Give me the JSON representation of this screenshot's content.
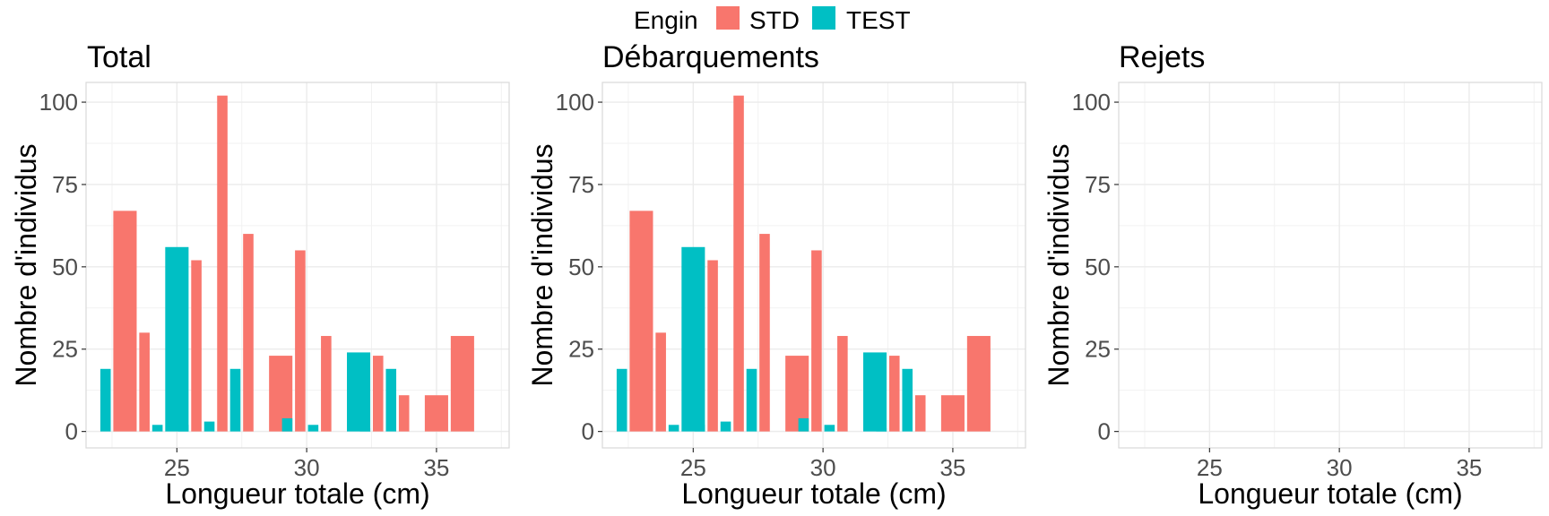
{
  "legend": {
    "title": "Engin",
    "items": [
      {
        "label": "STD",
        "color": "#F8766D"
      },
      {
        "label": "TEST",
        "color": "#00BFC4"
      }
    ]
  },
  "chart_data": [
    {
      "type": "bar",
      "title": "Total",
      "xlabel": "Longueur totale (cm)",
      "ylabel": "Nombre d'individus",
      "xlim": [
        21.5,
        37.8
      ],
      "ylim": [
        -5,
        106
      ],
      "xticks": [
        25,
        30,
        35
      ],
      "yticks": [
        0,
        25,
        50,
        75,
        100
      ],
      "grid": true,
      "series": [
        {
          "name": "STD",
          "color": "#F8766D",
          "points": [
            {
              "x0": 22.55,
              "x1": 23.45,
              "y": 67
            },
            {
              "x0": 23.55,
              "x1": 23.95,
              "y": 30
            },
            {
              "x0": 25.55,
              "x1": 25.95,
              "y": 52
            },
            {
              "x0": 26.55,
              "x1": 26.95,
              "y": 102
            },
            {
              "x0": 27.55,
              "x1": 27.95,
              "y": 60
            },
            {
              "x0": 28.55,
              "x1": 29.45,
              "y": 23
            },
            {
              "x0": 29.55,
              "x1": 29.95,
              "y": 55
            },
            {
              "x0": 30.55,
              "x1": 30.95,
              "y": 29
            },
            {
              "x0": 32.55,
              "x1": 32.95,
              "y": 23
            },
            {
              "x0": 33.55,
              "x1": 33.95,
              "y": 11
            },
            {
              "x0": 34.55,
              "x1": 35.45,
              "y": 11
            },
            {
              "x0": 35.55,
              "x1": 36.45,
              "y": 29
            }
          ]
        },
        {
          "name": "TEST",
          "color": "#00BFC4",
          "points": [
            {
              "x0": 22.05,
              "x1": 22.45,
              "y": 19
            },
            {
              "x0": 24.05,
              "x1": 24.45,
              "y": 2
            },
            {
              "x0": 25.05,
              "x1": 25.45,
              "y": 2
            },
            {
              "x0": 26.05,
              "x1": 26.45,
              "y": 3
            },
            {
              "x0": 27.05,
              "x1": 27.45,
              "y": 19
            },
            {
              "x0": 24.55,
              "x1": 25.45,
              "y": 56
            },
            {
              "x0": 29.05,
              "x1": 29.45,
              "y": 4
            },
            {
              "x0": 30.05,
              "x1": 30.45,
              "y": 2
            },
            {
              "x0": 31.55,
              "x1": 32.45,
              "y": 24
            },
            {
              "x0": 32.05,
              "x1": 32.45,
              "y": 1
            },
            {
              "x0": 33.05,
              "x1": 33.45,
              "y": 19
            }
          ]
        }
      ]
    },
    {
      "type": "bar",
      "title": "Débarquements",
      "xlabel": "Longueur totale (cm)",
      "ylabel": "Nombre d'individus",
      "xlim": [
        21.5,
        37.8
      ],
      "ylim": [
        -5,
        106
      ],
      "xticks": [
        25,
        30,
        35
      ],
      "yticks": [
        0,
        25,
        50,
        75,
        100
      ],
      "grid": true,
      "series": [
        {
          "name": "STD",
          "color": "#F8766D",
          "points": [
            {
              "x0": 22.55,
              "x1": 23.45,
              "y": 67
            },
            {
              "x0": 23.55,
              "x1": 23.95,
              "y": 30
            },
            {
              "x0": 25.55,
              "x1": 25.95,
              "y": 52
            },
            {
              "x0": 26.55,
              "x1": 26.95,
              "y": 102
            },
            {
              "x0": 27.55,
              "x1": 27.95,
              "y": 60
            },
            {
              "x0": 28.55,
              "x1": 29.45,
              "y": 23
            },
            {
              "x0": 29.55,
              "x1": 29.95,
              "y": 55
            },
            {
              "x0": 30.55,
              "x1": 30.95,
              "y": 29
            },
            {
              "x0": 32.55,
              "x1": 32.95,
              "y": 23
            },
            {
              "x0": 33.55,
              "x1": 33.95,
              "y": 11
            },
            {
              "x0": 34.55,
              "x1": 35.45,
              "y": 11
            },
            {
              "x0": 35.55,
              "x1": 36.45,
              "y": 29
            }
          ]
        },
        {
          "name": "TEST",
          "color": "#00BFC4",
          "points": [
            {
              "x0": 22.05,
              "x1": 22.45,
              "y": 19
            },
            {
              "x0": 24.05,
              "x1": 24.45,
              "y": 2
            },
            {
              "x0": 25.05,
              "x1": 25.45,
              "y": 2
            },
            {
              "x0": 26.05,
              "x1": 26.45,
              "y": 3
            },
            {
              "x0": 27.05,
              "x1": 27.45,
              "y": 19
            },
            {
              "x0": 24.55,
              "x1": 25.45,
              "y": 56
            },
            {
              "x0": 29.05,
              "x1": 29.45,
              "y": 4
            },
            {
              "x0": 30.05,
              "x1": 30.45,
              "y": 2
            },
            {
              "x0": 31.55,
              "x1": 32.45,
              "y": 24
            },
            {
              "x0": 32.05,
              "x1": 32.45,
              "y": 1
            },
            {
              "x0": 33.05,
              "x1": 33.45,
              "y": 19
            }
          ]
        }
      ]
    },
    {
      "type": "bar",
      "title": "Rejets",
      "xlabel": "Longueur totale (cm)",
      "ylabel": "Nombre d'individus",
      "xlim": [
        21.5,
        37.8
      ],
      "ylim": [
        -5,
        106
      ],
      "xticks": [
        25,
        30,
        35
      ],
      "yticks": [
        0,
        25,
        50,
        75,
        100
      ],
      "grid": true,
      "series": []
    }
  ]
}
